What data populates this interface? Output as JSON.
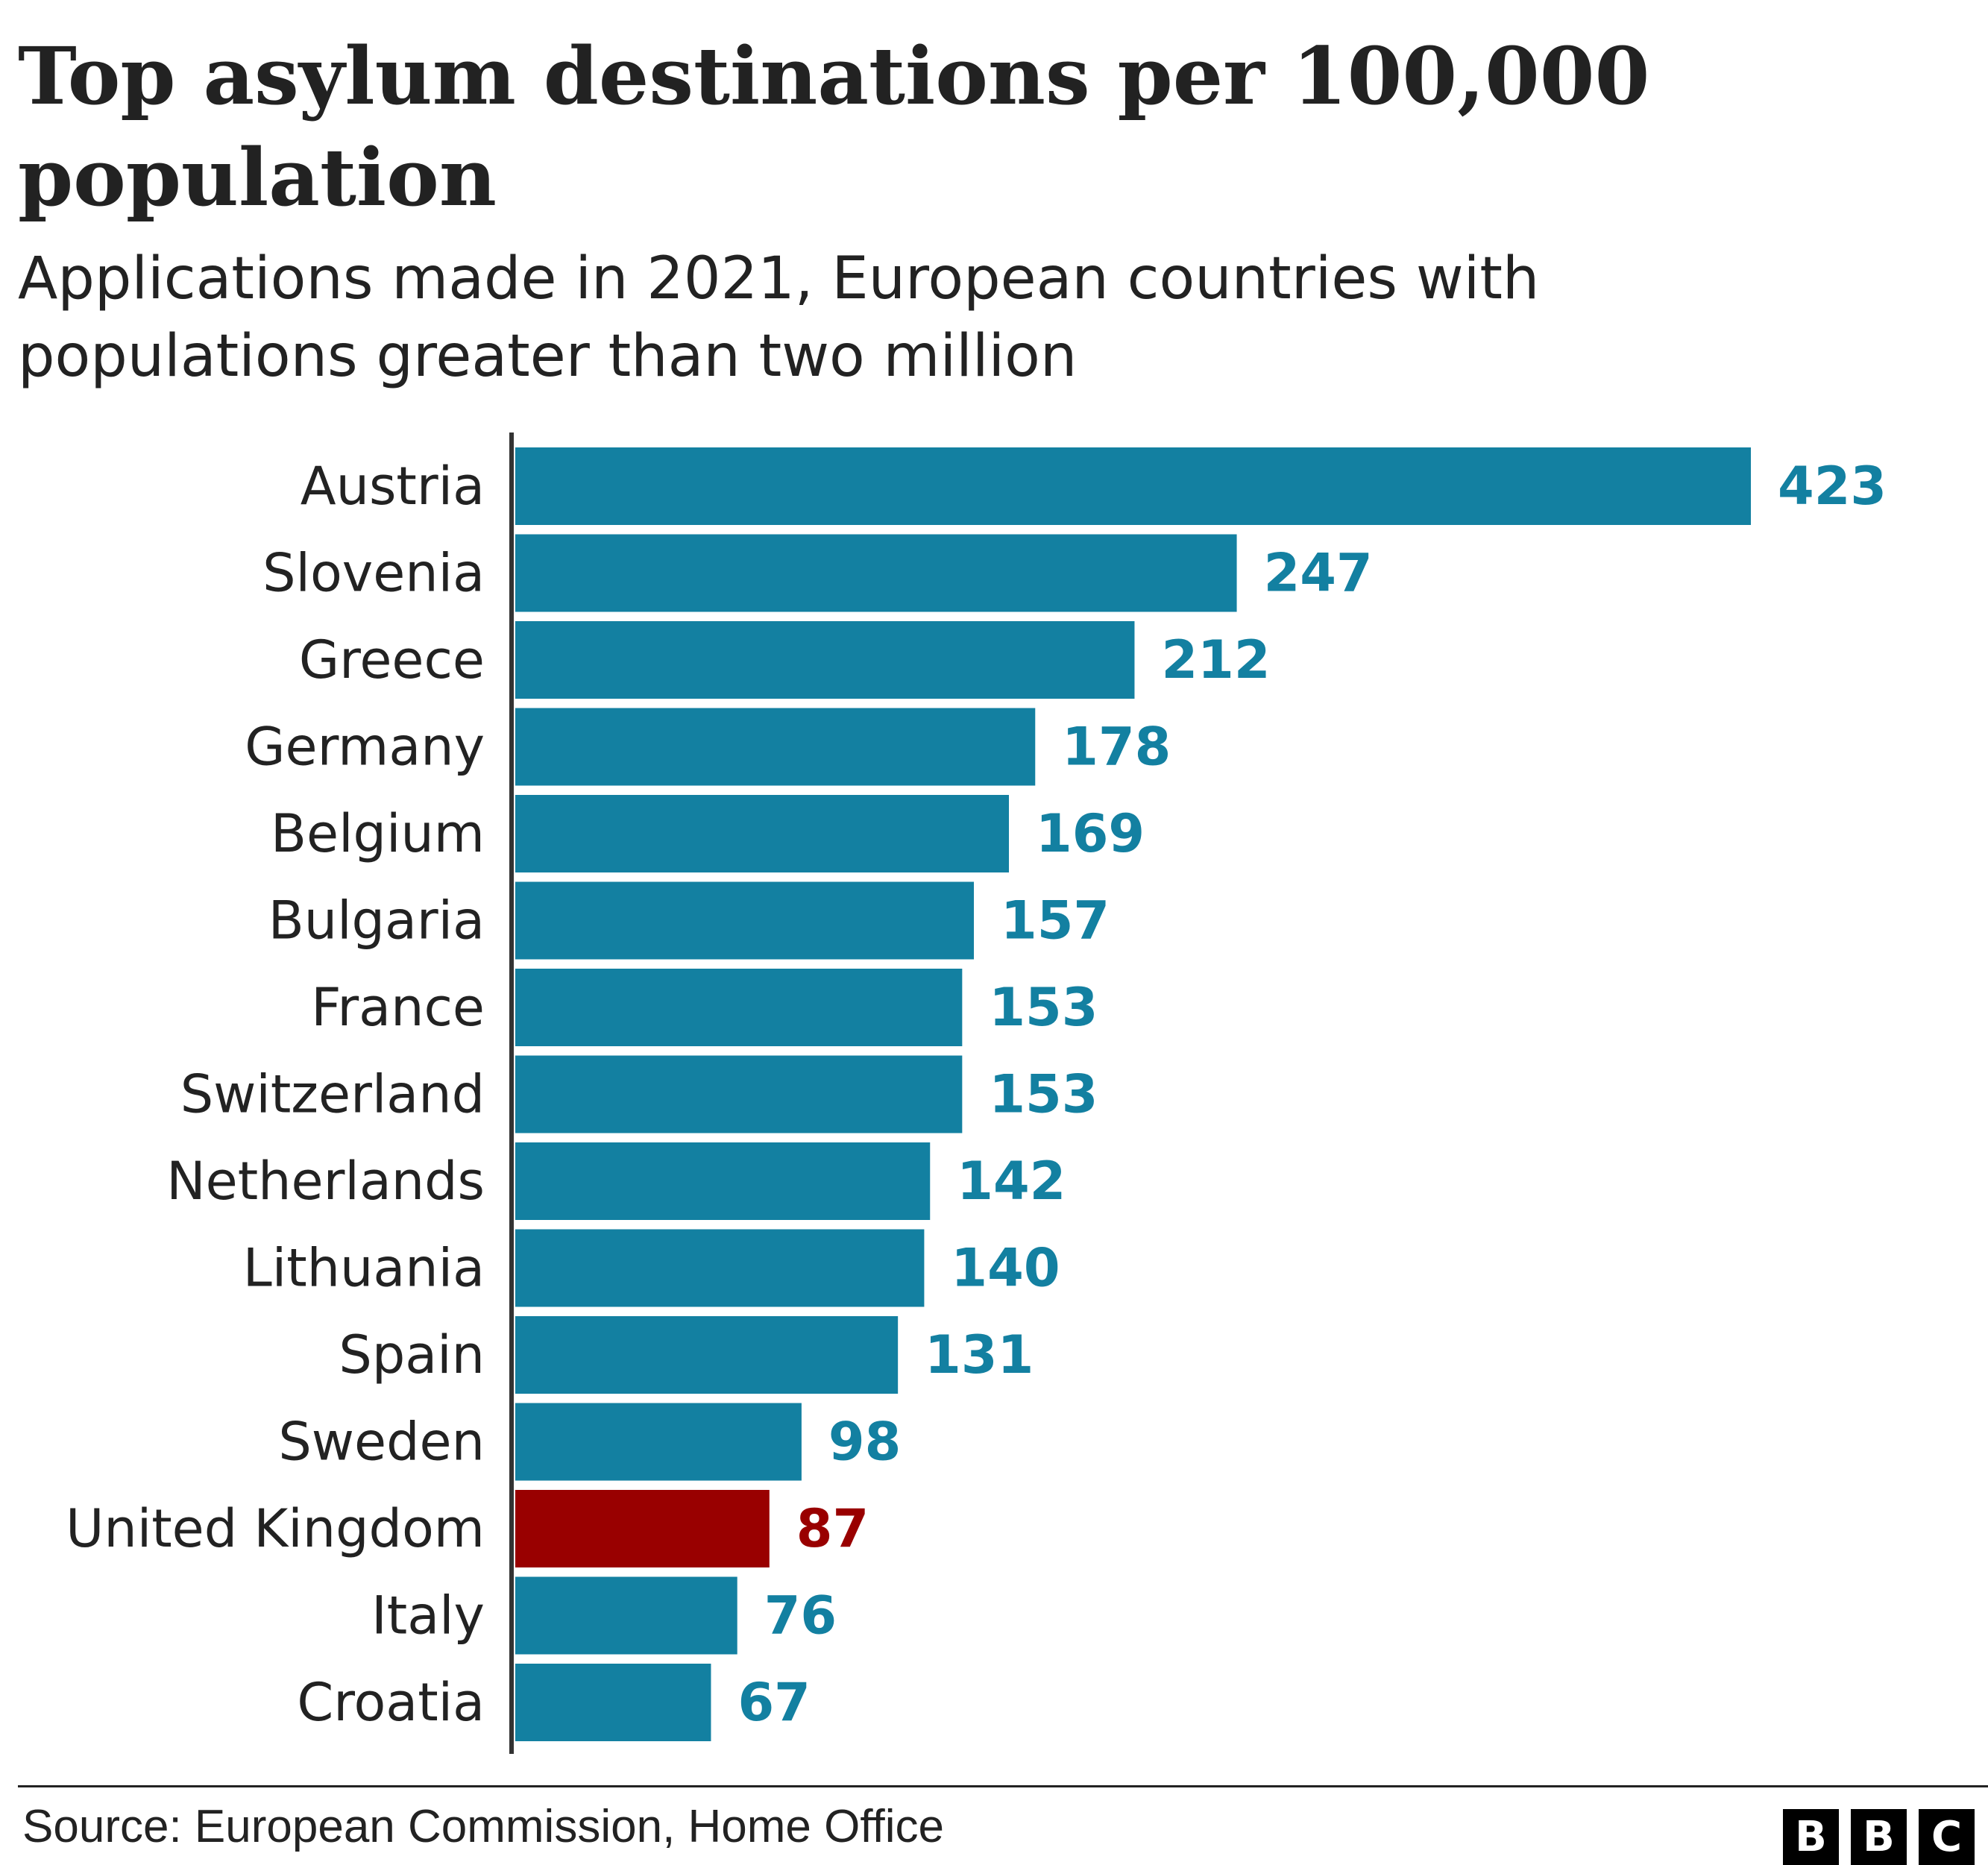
{
  "title": "Top asylum destinations per 100,000 population",
  "subtitle": "Applications made in 2021, European countries with populations greater than two million",
  "source": "Source: European Commission, Home Office",
  "logo": [
    "B",
    "B",
    "C"
  ],
  "colors": {
    "bar": "#1380A1",
    "highlight": "#990000",
    "axis": "#333333"
  },
  "chart_data": {
    "type": "bar",
    "orientation": "horizontal",
    "title": "Top asylum destinations per 100,000 population",
    "subtitle": "Applications made in 2021, European countries with populations greater than two million",
    "xlabel": "",
    "ylabel": "",
    "xlim": [
      0,
      423
    ],
    "categories": [
      "Austria",
      "Slovenia",
      "Greece",
      "Germany",
      "Belgium",
      "Bulgaria",
      "France",
      "Switzerland",
      "Netherlands",
      "Lithuania",
      "Spain",
      "Sweden",
      "United Kingdom",
      "Italy",
      "Croatia"
    ],
    "values": [
      423,
      247,
      212,
      178,
      169,
      157,
      153,
      153,
      142,
      140,
      131,
      98,
      87,
      76,
      67
    ],
    "highlight": "United Kingdom",
    "data_labels": true,
    "grid": false
  }
}
